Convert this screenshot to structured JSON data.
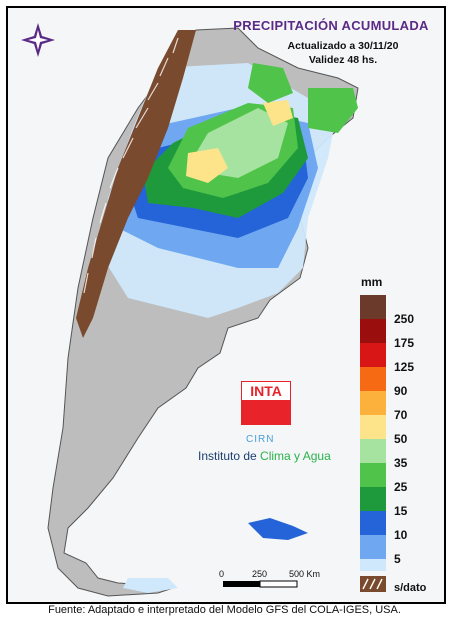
{
  "header": {
    "title": "PRECIPITACIÓN ACUMULADA",
    "updated": "Actualizado a 30/11/20",
    "validity": "Validez 48 hs."
  },
  "legend": {
    "unit": "mm",
    "no_data_label": "s/dato",
    "no_data_color": "#7a4a2e",
    "bins": [
      {
        "label": "250",
        "color": "#6b3a2a"
      },
      {
        "label": "175",
        "color": "#9b0e0e"
      },
      {
        "label": "125",
        "color": "#d81616"
      },
      {
        "label": "90",
        "color": "#f56a12"
      },
      {
        "label": "70",
        "color": "#fbb13c"
      },
      {
        "label": "50",
        "color": "#fde38a"
      },
      {
        "label": "35",
        "color": "#a6e3a1"
      },
      {
        "label": "25",
        "color": "#4fc34a"
      },
      {
        "label": "15",
        "color": "#1e9a3d"
      },
      {
        "label": "10",
        "color": "#2563d8"
      },
      {
        "label": "5",
        "color": "#6fa8f0"
      }
    ],
    "lowest_color": "#cfe8fb"
  },
  "scale_bar": {
    "labels": [
      "0",
      "250",
      "500 Km"
    ]
  },
  "logo": {
    "brand": "INTA",
    "unit": "CIRN",
    "institute_prefix": "Instituto de ",
    "institute_accent": "Clima y Agua"
  },
  "footer": {
    "source": "Fuente: Adaptado e interpretado del Modelo GFS del COLA-IGES, USA."
  }
}
